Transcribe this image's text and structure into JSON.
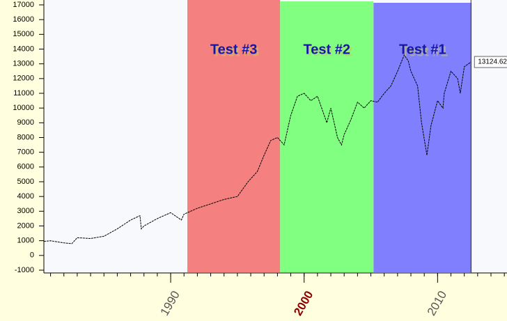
{
  "chart_data": {
    "type": "line",
    "x": [
      1980.5,
      1981,
      1982,
      1982.6,
      1983,
      1984,
      1985,
      1986,
      1987,
      1987.7,
      1987.8,
      1988,
      1989,
      1990,
      1990.8,
      1991,
      1992,
      1993,
      1994,
      1995,
      1995.8,
      1996.5,
      1997,
      1997.5,
      1998,
      1998.5,
      1999,
      1999.5,
      2000,
      2000.5,
      2001,
      2001.7,
      2002,
      2002.5,
      2002.8,
      2003,
      2003.5,
      2004,
      2004.5,
      2005,
      2005.5,
      2006,
      2006.5,
      2007,
      2007.5,
      2007.8,
      2008,
      2008.5,
      2008.8,
      2009.2,
      2009.5,
      2010,
      2010.4,
      2010.5,
      2011,
      2011.5,
      2011.7,
      2012,
      2012.5
    ],
    "series": [
      {
        "color": "#000000",
        "values": [
          950,
          1000,
          850,
          800,
          1200,
          1150,
          1300,
          1800,
          2400,
          2700,
          1800,
          2000,
          2500,
          2900,
          2400,
          2800,
          3200,
          3500,
          3800,
          4000,
          5000,
          5700,
          6800,
          7800,
          8000,
          7500,
          9500,
          10800,
          11000,
          10500,
          10800,
          9000,
          10000,
          8000,
          7500,
          8200,
          9200,
          10400,
          10000,
          10500,
          10400,
          11000,
          11500,
          12500,
          13600,
          13200,
          12500,
          11500,
          9000,
          6800,
          8800,
          10500,
          10000,
          11000,
          12500,
          12000,
          11000,
          12800,
          13124.62
        ]
      }
    ],
    "end_label": {
      "value": 13124.62,
      "label": "13124.62"
    },
    "regions": [
      {
        "label": "Test #3",
        "start": 1991.25,
        "end": 1998.2,
        "color": "#f48080"
      },
      {
        "label": "Test #2",
        "start": 1998.2,
        "end": 2005.2,
        "color": "#80ff80"
      },
      {
        "label": "Test #1",
        "start": 2005.2,
        "end": 2012.55,
        "color": "#8080ff"
      }
    ],
    "xlim": [
      1980.5,
      2015.2
    ],
    "xticks": [
      1990,
      2000,
      2010
    ],
    "xtick_colors": [
      "#555555",
      "#8b0000",
      "#555555"
    ],
    "minor_xtick_step": 1,
    "ylim": [
      -1000,
      17000
    ],
    "yticks": [
      -1000,
      0,
      1000,
      2000,
      3000,
      4000,
      5000,
      6000,
      7000,
      8000,
      9000,
      10000,
      11000,
      12000,
      13000,
      14000,
      15000,
      16000,
      17000
    ]
  }
}
